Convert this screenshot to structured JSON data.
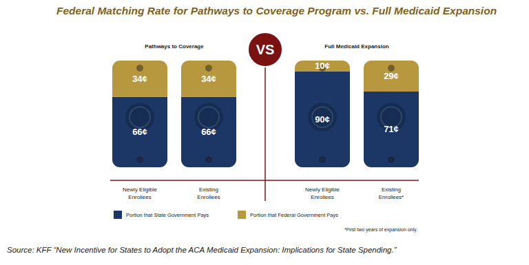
{
  "chart_data": {
    "type": "bar",
    "stacked": true,
    "data_labels": true,
    "tick_labels": false,
    "legend": "bottom",
    "title": "Federal Matching Rate for Pathways to Coverage Program vs. Full Medicaid Expansion",
    "groups": [
      "Pathways to Coverage",
      "Full Medicaid Expansion"
    ],
    "center_label": "VS",
    "categories": [
      "Newly Eligible Enrollees",
      "Existing Enrollees",
      "Newly Eligible Enrollees",
      "Existing Enrollees*"
    ],
    "ylim": [
      0,
      100
    ],
    "series": [
      {
        "name": "Portion that State Government Pays",
        "color": "#1c3766",
        "values": [
          66,
          66,
          90,
          71
        ],
        "value_labels": [
          "66¢",
          "66¢",
          "90¢",
          "71¢"
        ]
      },
      {
        "name": "Portion that Federal Government Pays",
        "color": "#b8983f",
        "values": [
          34,
          34,
          10,
          29
        ],
        "value_labels": [
          "34¢",
          "34¢",
          "10¢",
          "29¢"
        ]
      }
    ],
    "footnote": "*First two years of expansion only.",
    "source": "Source: KFF “New Incentive for States to Adopt the ACA Medicaid Expansion: Implications for State Spending.”"
  }
}
